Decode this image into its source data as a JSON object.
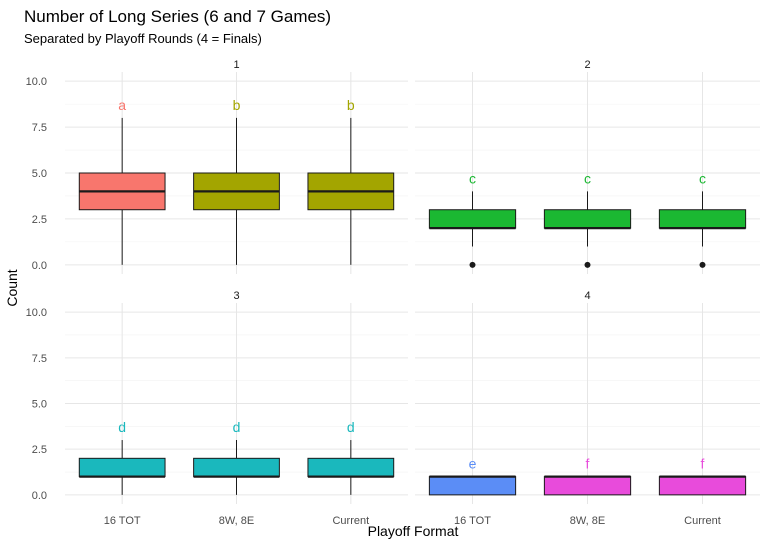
{
  "chart_data": {
    "type": "boxplot",
    "title": "Number of Long Series (6 and 7 Games)",
    "subtitle": "Separated by Playoff Rounds (4 = Finals)",
    "xlabel": "Playoff Format",
    "ylabel": "Count",
    "ylim": [
      -0.5,
      10.5
    ],
    "y_ticks": [
      "0.0",
      "2.5",
      "5.0",
      "7.5",
      "10.0"
    ],
    "categories": [
      "16 TOT",
      "8W, 8E",
      "Current"
    ],
    "grid": true,
    "legend": "none",
    "facets": [
      {
        "label": "1",
        "boxes": [
          {
            "category": "16 TOT",
            "min": 0,
            "q1": 3,
            "median": 4,
            "q3": 5,
            "max": 8,
            "outliers": [],
            "letter": "a",
            "color": "#F8766D"
          },
          {
            "category": "8W, 8E",
            "min": 0,
            "q1": 3,
            "median": 4,
            "q3": 5,
            "max": 8,
            "outliers": [],
            "letter": "b",
            "color": "#A3A500"
          },
          {
            "category": "Current",
            "min": 0,
            "q1": 3,
            "median": 4,
            "q3": 5,
            "max": 8,
            "outliers": [],
            "letter": "b",
            "color": "#A3A500"
          }
        ]
      },
      {
        "label": "2",
        "boxes": [
          {
            "category": "16 TOT",
            "min": 1,
            "q1": 2,
            "median": 2,
            "q3": 3,
            "max": 4,
            "outliers": [
              0
            ],
            "letter": "c",
            "color": "#1BB832"
          },
          {
            "category": "8W, 8E",
            "min": 1,
            "q1": 2,
            "median": 2,
            "q3": 3,
            "max": 4,
            "outliers": [
              0
            ],
            "letter": "c",
            "color": "#1BB832"
          },
          {
            "category": "Current",
            "min": 1,
            "q1": 2,
            "median": 2,
            "q3": 3,
            "max": 4,
            "outliers": [
              0
            ],
            "letter": "c",
            "color": "#1BB832"
          }
        ]
      },
      {
        "label": "3",
        "boxes": [
          {
            "category": "16 TOT",
            "min": 0,
            "q1": 1,
            "median": 1,
            "q3": 2,
            "max": 3,
            "outliers": [],
            "letter": "d",
            "color": "#1AB8BD"
          },
          {
            "category": "8W, 8E",
            "min": 0,
            "q1": 1,
            "median": 1,
            "q3": 2,
            "max": 3,
            "outliers": [],
            "letter": "d",
            "color": "#1AB8BD"
          },
          {
            "category": "Current",
            "min": 0,
            "q1": 1,
            "median": 1,
            "q3": 2,
            "max": 3,
            "outliers": [],
            "letter": "d",
            "color": "#1AB8BD"
          }
        ]
      },
      {
        "label": "4",
        "boxes": [
          {
            "category": "16 TOT",
            "min": 0,
            "q1": 0,
            "median": 1,
            "q3": 1,
            "max": 1,
            "outliers": [],
            "letter": "e",
            "color": "#5B8DF6"
          },
          {
            "category": "8W, 8E",
            "min": 0,
            "q1": 0,
            "median": 1,
            "q3": 1,
            "max": 1,
            "outliers": [],
            "letter": "f",
            "color": "#E84BDB"
          },
          {
            "category": "Current",
            "min": 0,
            "q1": 0,
            "median": 1,
            "q3": 1,
            "max": 1,
            "outliers": [],
            "letter": "f",
            "color": "#E84BDB"
          }
        ]
      }
    ]
  }
}
